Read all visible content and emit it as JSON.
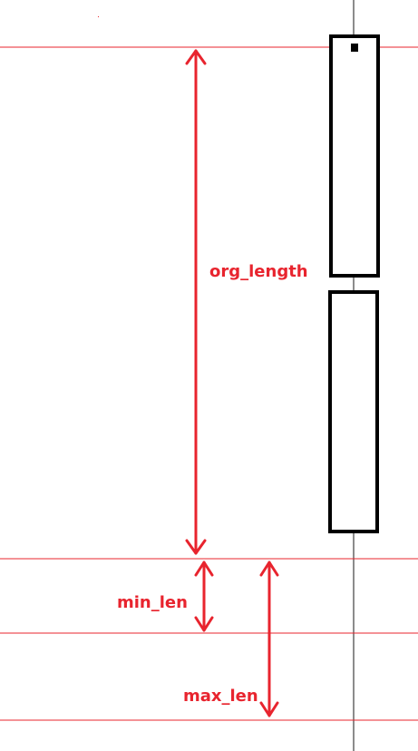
{
  "labels": {
    "org_length": "org_length",
    "min_len": "min_len",
    "max_len": "max_len"
  },
  "colors": {
    "annotation": "#e8242e",
    "guide_line": "#e8242e",
    "axis": "#8c8c8c",
    "box_stroke": "#000000"
  }
}
